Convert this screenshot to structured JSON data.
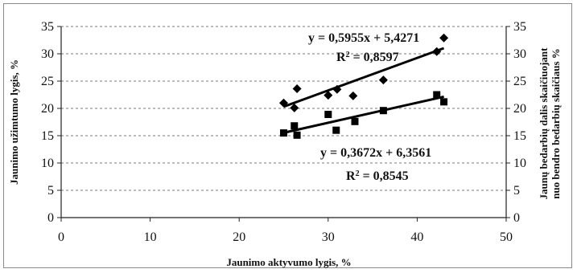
{
  "chart_data": {
    "type": "scatter",
    "title": "",
    "xlabel": "Jaunimo aktyvumo lygis, %",
    "ylabel": "Jaunimo užimtumo lygis, %",
    "ylabel_right_line1": "Jaunų bedarbių dalis skaičiuojant",
    "ylabel_right_line2": "nuo bendro bedarbių skaičiaus %",
    "xlim": [
      0,
      50
    ],
    "ylim": [
      0,
      35
    ],
    "xticks": [
      0,
      10,
      20,
      30,
      40,
      50
    ],
    "yticks": [
      0,
      5,
      10,
      15,
      20,
      25,
      30,
      35
    ],
    "grid": "horizontal dashed",
    "series": [
      {
        "marker": "diamond",
        "color": "#000000",
        "x": [
          25.0,
          26.2,
          26.5,
          30.0,
          31.0,
          32.8,
          36.2,
          42.2,
          43.0
        ],
        "y": [
          21.0,
          20.1,
          23.6,
          22.4,
          23.5,
          22.3,
          25.2,
          30.4,
          32.9
        ],
        "trendline": {
          "slope": 0.5955,
          "intercept": 5.4271,
          "x_range": [
            25.0,
            43.0
          ]
        },
        "equation": "y = 0,5955x + 5,4271",
        "r2_prefix": "R",
        "r2_value": " = 0,8597"
      },
      {
        "marker": "square",
        "color": "#000000",
        "x": [
          25.0,
          26.2,
          26.5,
          30.0,
          30.9,
          33.0,
          36.2,
          42.2,
          43.0
        ],
        "y": [
          15.5,
          16.8,
          15.1,
          18.9,
          16.0,
          17.6,
          19.6,
          22.5,
          21.2
        ],
        "trendline": {
          "slope": 0.3672,
          "intercept": 6.3561,
          "x_range": [
            25.0,
            43.0
          ]
        },
        "equation": "y = 0,3672x + 6,3561",
        "r2_prefix": "R",
        "r2_value": " = 0,8545"
      }
    ]
  }
}
